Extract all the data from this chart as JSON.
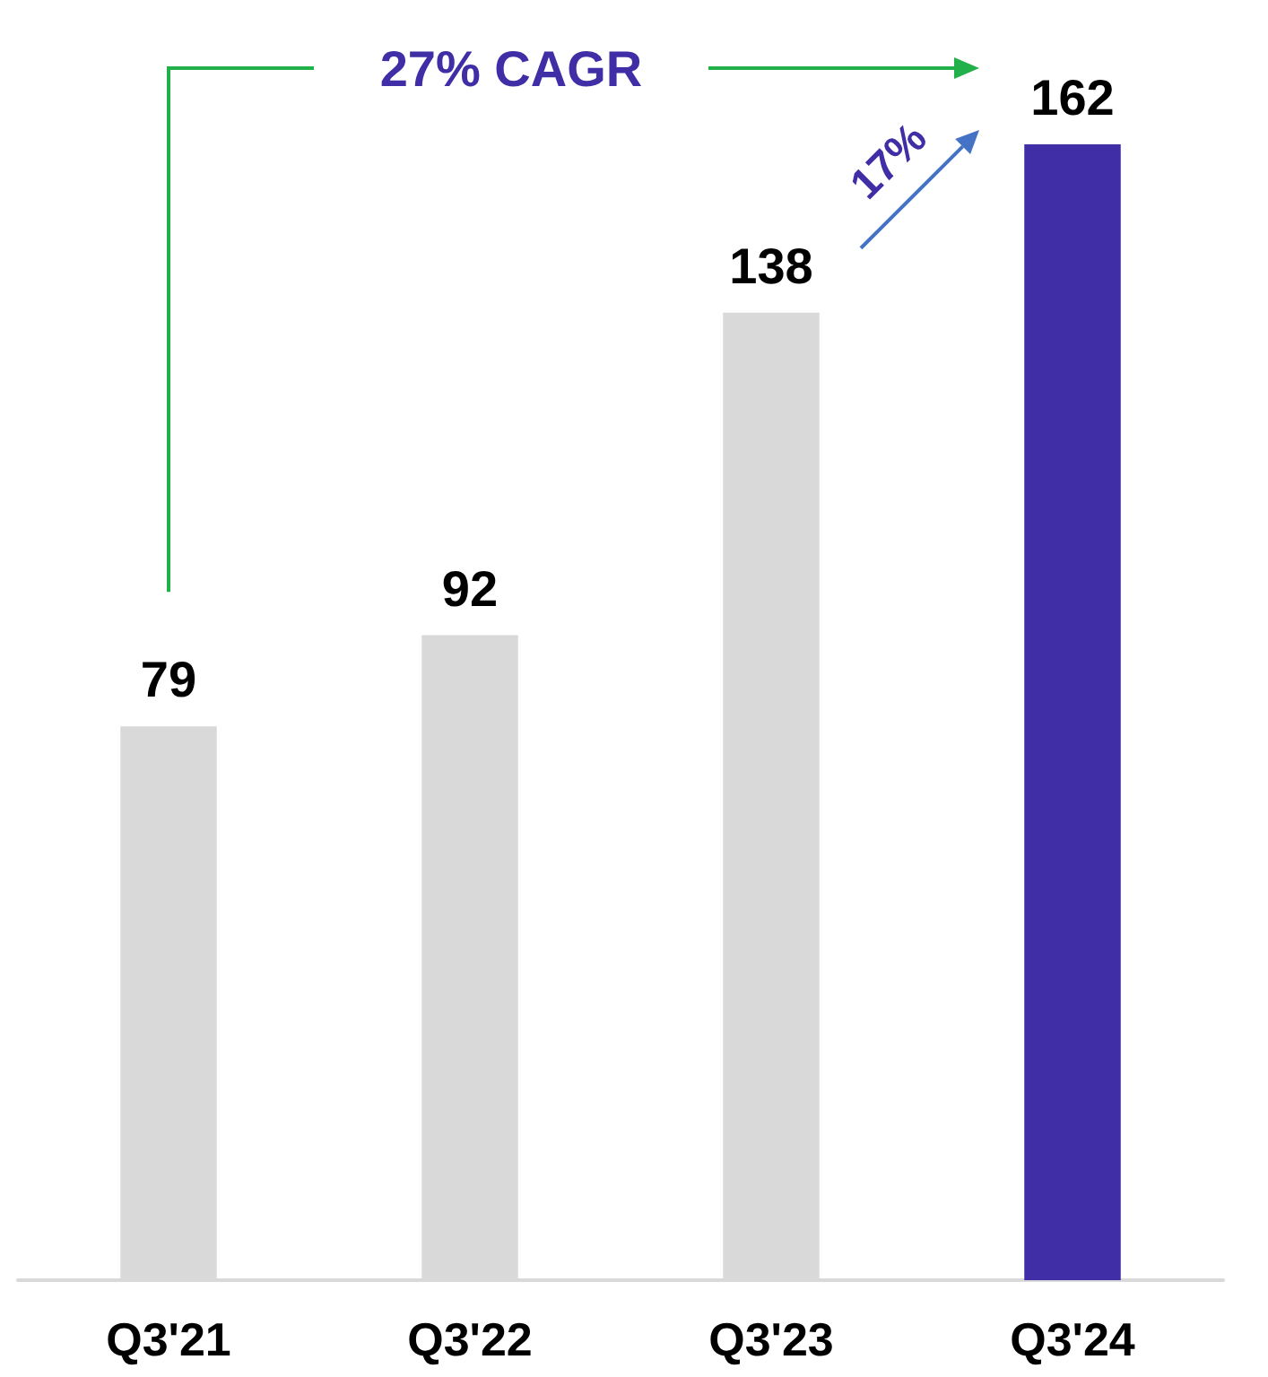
{
  "chart_data": {
    "type": "bar",
    "categories": [
      "Q3'21",
      "Q3'22",
      "Q3'23",
      "Q3'24"
    ],
    "values": [
      79,
      92,
      138,
      162
    ],
    "colors": [
      "#d9d9d9",
      "#d9d9d9",
      "#d9d9d9",
      "#3f2ea6"
    ],
    "data_labels": true,
    "annotations": [
      "27% CAGR",
      "17%"
    ]
  }
}
